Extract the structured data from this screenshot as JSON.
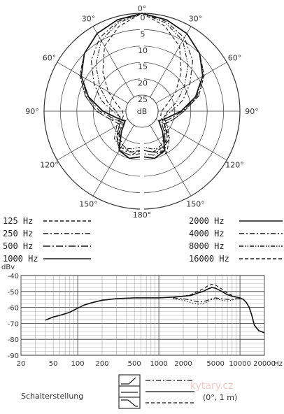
{
  "chart_data": [
    {
      "type": "polar",
      "unit_label": "dB",
      "radial_ticks": [
        "0",
        "5",
        "10",
        "15",
        "20",
        "25"
      ],
      "radial_range_db": [
        0,
        25
      ],
      "angle_labels": [
        "0°",
        "30°",
        "60°",
        "90°",
        "120°",
        "150°",
        "180°",
        "150°",
        "120°",
        "90°",
        "60°",
        "30°"
      ],
      "angles_deg": [
        0,
        30,
        60,
        90,
        120,
        150,
        180,
        210,
        240,
        270,
        300,
        330
      ],
      "series": [
        {
          "name": "125 Hz",
          "style": "dashed",
          "values_db": [
            0,
            1,
            2.5,
            5,
            8,
            12,
            17,
            20,
            22,
            18,
            15,
            17,
            18,
            16,
            16,
            19,
            24,
            20,
            16,
            12,
            8,
            5,
            2.5,
            1,
            0
          ]
        },
        {
          "name": "250 Hz",
          "style": "dashdot",
          "values_db": [
            0,
            1,
            2.5,
            5,
            8,
            12,
            17,
            20,
            22,
            19,
            16,
            17,
            18,
            17,
            16,
            19,
            22,
            20,
            16,
            12,
            8,
            5,
            2.5,
            1,
            0
          ]
        },
        {
          "name": "500 Hz",
          "style": "longdashdot",
          "values_db": [
            0,
            1,
            2.5,
            5,
            8.5,
            12.5,
            17.5,
            21,
            23,
            20,
            16,
            16,
            17,
            16,
            16,
            20,
            23,
            21,
            17,
            12.5,
            8.5,
            5,
            2.5,
            1,
            0
          ]
        },
        {
          "name": "1000 Hz",
          "style": "solid",
          "values_db": [
            0,
            1,
            2.5,
            5,
            8.5,
            13,
            18,
            22,
            24,
            21,
            16,
            15,
            16,
            15,
            16,
            21,
            24,
            22,
            18,
            13,
            8.5,
            5,
            2.5,
            1,
            0
          ]
        },
        {
          "name": "2000 Hz",
          "style": "solid",
          "values_db": [
            0,
            1,
            2.5,
            5,
            8.5,
            13,
            18,
            22,
            24,
            21,
            16,
            15,
            16,
            15,
            16,
            21,
            24,
            22,
            18,
            13,
            8.5,
            5,
            2.5,
            1,
            0
          ]
        },
        {
          "name": "4000 Hz",
          "style": "dashdot",
          "values_db": [
            0,
            1.5,
            4,
            8,
            13,
            17,
            21,
            23,
            22,
            20,
            18,
            17,
            18,
            17,
            18,
            20,
            22,
            23,
            21,
            17,
            13,
            8,
            4,
            1.5,
            0
          ]
        },
        {
          "name": "8000 Hz",
          "style": "dashdotdot",
          "values_db": [
            0,
            2,
            5,
            10,
            15,
            19,
            22,
            23,
            21,
            18,
            17,
            18,
            19,
            18,
            17,
            18,
            21,
            23,
            22,
            19,
            15,
            10,
            5,
            2,
            0
          ]
        },
        {
          "name": "16000 Hz",
          "style": "dashed",
          "values_db": [
            0,
            3,
            7,
            13,
            18,
            22,
            24,
            24,
            22,
            19,
            17,
            17,
            18,
            17,
            17,
            19,
            22,
            24,
            24,
            22,
            18,
            13,
            7,
            3,
            0
          ]
        }
      ]
    },
    {
      "type": "line",
      "ylabel": "dBv",
      "ylim": [
        -90,
        -40
      ],
      "y_ticks": [
        "-40",
        "-50",
        "-60",
        "-70",
        "-80",
        "-90"
      ],
      "xscale": "log",
      "xlim": [
        20,
        20000
      ],
      "x_tick_values": [
        20,
        50,
        100,
        200,
        500,
        1000,
        2000,
        5000,
        10000,
        20000
      ],
      "x_ticks": [
        "20",
        "50",
        "100",
        "200",
        "500",
        "1000",
        "2000",
        "5000",
        "10000",
        "20000"
      ],
      "x_unit": "Hz",
      "series": [
        {
          "style": "solid",
          "x": [
            40,
            50,
            60,
            70,
            80,
            100,
            120,
            150,
            200,
            300,
            500,
            700,
            1000,
            1500,
            2000,
            2500,
            3000,
            3500,
            4000,
            4500,
            5000,
            6000,
            7000,
            8000,
            9000,
            10000,
            11000,
            12000,
            13000,
            14000,
            15000,
            17000,
            19000,
            20000
          ],
          "y": [
            -68,
            -66,
            -65,
            -64,
            -63,
            -60.5,
            -58.5,
            -57,
            -55.5,
            -54.5,
            -54,
            -54,
            -54,
            -53.5,
            -53,
            -52.5,
            -51,
            -50,
            -48.5,
            -47.5,
            -48,
            -50,
            -52,
            -53,
            -53.5,
            -54,
            -55,
            -57,
            -60,
            -65,
            -71,
            -74.5,
            -75.5,
            -76
          ]
        },
        {
          "style": "dashed",
          "x": [
            1500,
            2000,
            2500,
            3000,
            3500,
            4000,
            4500,
            5000,
            6000,
            7000,
            8000,
            9000,
            10000
          ],
          "y": [
            -53.5,
            -53,
            -52,
            -50,
            -48.5,
            -46.5,
            -45.5,
            -46,
            -48.5,
            -51,
            -52.5,
            -53.5,
            -54
          ]
        },
        {
          "style": "dashdot",
          "x": [
            1500,
            2000,
            2500,
            3000,
            3500,
            4000,
            4500,
            5000,
            6000,
            7000,
            8000,
            9000,
            10000
          ],
          "y": [
            -54,
            -54.5,
            -55.5,
            -56.5,
            -56.5,
            -55.5,
            -54.5,
            -54,
            -54.5,
            -55,
            -55,
            -54.5,
            -54.5
          ]
        },
        {
          "style": "dotted",
          "x": [
            1500,
            2000,
            2500,
            3000,
            3500,
            4000,
            4500,
            5000,
            6000,
            7000,
            8000,
            9000,
            10000
          ],
          "y": [
            -54.5,
            -55.5,
            -57,
            -58,
            -57.5,
            -56.5,
            -55,
            -54.5,
            -55.5,
            -56,
            -55.5,
            -54.5,
            -54.5
          ]
        }
      ]
    }
  ],
  "legend": {
    "left": [
      {
        "label": "125  Hz",
        "style": "dashed"
      },
      {
        "label": "250  Hz",
        "style": "dashdot"
      },
      {
        "label": "500  Hz",
        "style": "longdashdot"
      },
      {
        "label": "1000  Hz",
        "style": "solid"
      }
    ],
    "right": [
      {
        "label": "2000  Hz",
        "style": "solid"
      },
      {
        "label": "4000  Hz",
        "style": "dashdot"
      },
      {
        "label": "8000  Hz",
        "style": "dashdotdot"
      },
      {
        "label": "16000  Hz",
        "style": "dashed"
      }
    ]
  },
  "switch": {
    "label": "Schalterstellung",
    "measurement": "(0°, 1 m)",
    "positions": [
      {
        "icon": "flat-then-rise-icon",
        "style": "dashdot"
      },
      {
        "icon": "flat-icon",
        "style": "solid"
      },
      {
        "icon": "rolloff-icon",
        "style": "dashed"
      }
    ]
  },
  "watermark": {
    "text": "kytary.cz"
  }
}
